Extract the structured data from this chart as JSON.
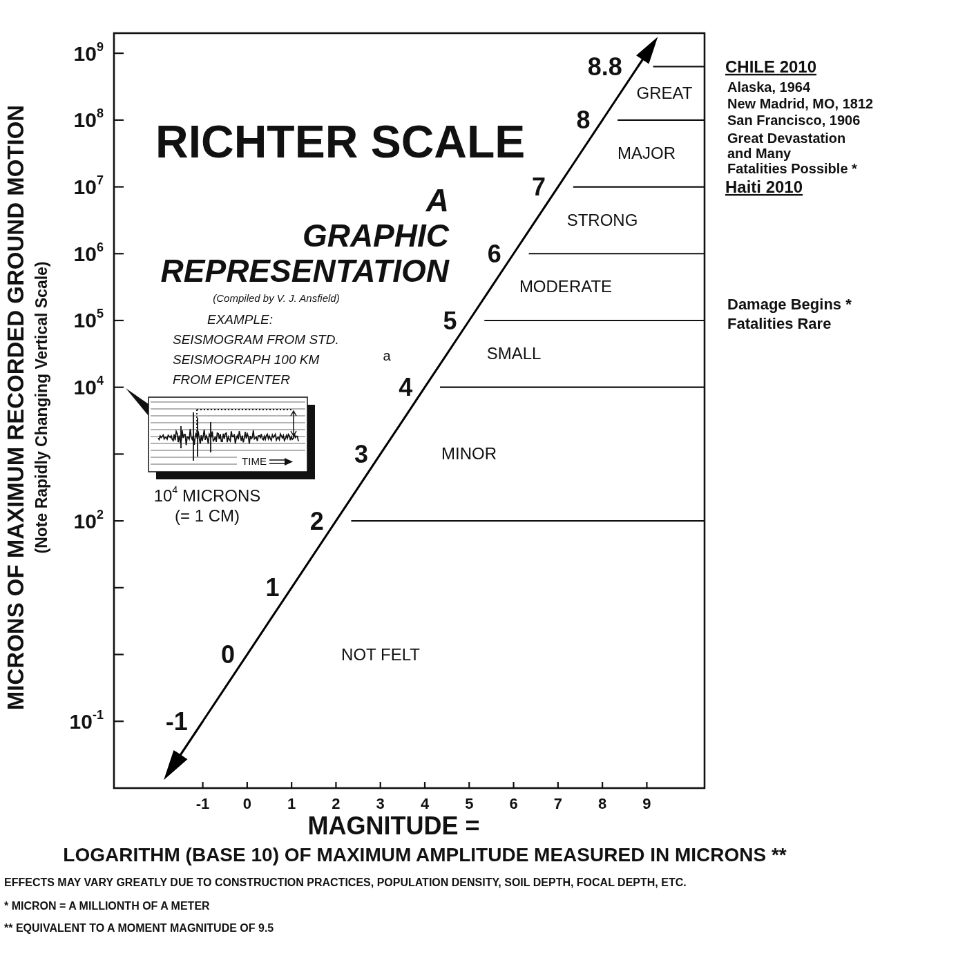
{
  "chart_data": {
    "type": "line",
    "title": "RICHTER SCALE",
    "subtitle": "A GRAPHIC REPRESENTATION",
    "xlabel": "MAGNITUDE =\nLOGARITHM (BASE 10) OF MAXIMUM AMPLITUDE MEASURED IN MICRONS **",
    "ylabel": "MICRONS OF MAXIMUM RECORDED GROUND MOTION\n(Note Rapidly Changing Vertical Scale)",
    "x": [
      -1,
      0,
      1,
      2,
      3,
      4,
      5,
      6,
      7,
      8,
      8.8
    ],
    "values": [
      0.1,
      1,
      10,
      100,
      1000,
      10000,
      100000,
      1000000,
      10000000,
      100000000,
      631000000
    ],
    "color": "#000000",
    "log": true,
    "xlim": [
      -3,
      10.3
    ],
    "xticks": [
      -1,
      0,
      1,
      2,
      3,
      4,
      5,
      6,
      7,
      8,
      9
    ],
    "ylim": [
      0.01,
      2000000000
    ],
    "yticks": [
      {
        "value": 0.1,
        "label": "10$^{-1}$"
      },
      {
        "value": 1,
        "label": null
      },
      {
        "value": 10,
        "label": null
      },
      {
        "value": 100,
        "label": "10$^{2}$"
      },
      {
        "value": 1000,
        "label": null
      },
      {
        "value": 10000,
        "label": "10$^{4}$"
      },
      {
        "value": 100000,
        "label": "10$^{5}$"
      },
      {
        "value": 1000000,
        "label": "10$^{6}$"
      },
      {
        "value": 10000000,
        "label": "10$^{7}$"
      },
      {
        "value": 100000000,
        "label": "10$^{8}$"
      },
      {
        "value": 1000000000,
        "label": "10$^{9}$"
      }
    ],
    "ref_lines": [
      {
        "axis": "y",
        "value": 631000000,
        "label": "CHILE 2010"
      },
      {
        "axis": "y",
        "value": 100000000
      },
      {
        "axis": "y",
        "value": 10000000,
        "label": "Haiti 2010"
      },
      {
        "axis": "y",
        "value": 1000000
      },
      {
        "axis": "y",
        "value": 100000
      },
      {
        "axis": "y",
        "value": 10000
      },
      {
        "axis": "y",
        "value": 100
      }
    ],
    "annotations": [
      {
        "text": "-1",
        "x": -1,
        "y": 0.1
      },
      {
        "text": "0",
        "x": 0,
        "y": 1
      },
      {
        "text": "1",
        "x": 1,
        "y": 10
      },
      {
        "text": "2",
        "x": 2,
        "y": 100
      },
      {
        "text": "3",
        "x": 3,
        "y": 1000
      },
      {
        "text": "4",
        "x": 4,
        "y": 10000
      },
      {
        "text": "5",
        "x": 5,
        "y": 100000
      },
      {
        "text": "6",
        "x": 6,
        "y": 1000000
      },
      {
        "text": "7",
        "x": 7,
        "y": 10000000
      },
      {
        "text": "8",
        "x": 8,
        "y": 100000000
      },
      {
        "text": "8.8",
        "x": 8.8,
        "y": 631000000
      },
      "GREAT",
      "MAJOR",
      "STRONG",
      "MODERATE",
      "SMALL",
      "MINOR",
      "NOT FELT",
      "(Compiled by V. J. Ansfield)",
      "a",
      "EXAMPLE:\nSEISMOGRAM FROM STD.\nSEISMOGRAPH 100 KM\nFROM EPICENTER",
      "10$^{4}$ MICRONS\n(= 1 CM)",
      "TIME",
      "Alaska, 1964",
      "New Madrid, MO, 1812",
      "San Francisco, 1906",
      "Great Devastation\nand Many\nFatalities Possible *",
      "Damage Begins *\nFatalities Rare",
      "EFFECTS MAY VARY GREATLY DUE TO CONSTRUCTION PRACTICES, POPULATION DENSITY, SOIL DEPTH, FOCAL DEPTH, ETC.",
      "* MICRON = A MILLIONTH OF A METER",
      "** EQUIVALENT TO A MOMENT MAGNITUDE OF 9.5"
    ]
  }
}
